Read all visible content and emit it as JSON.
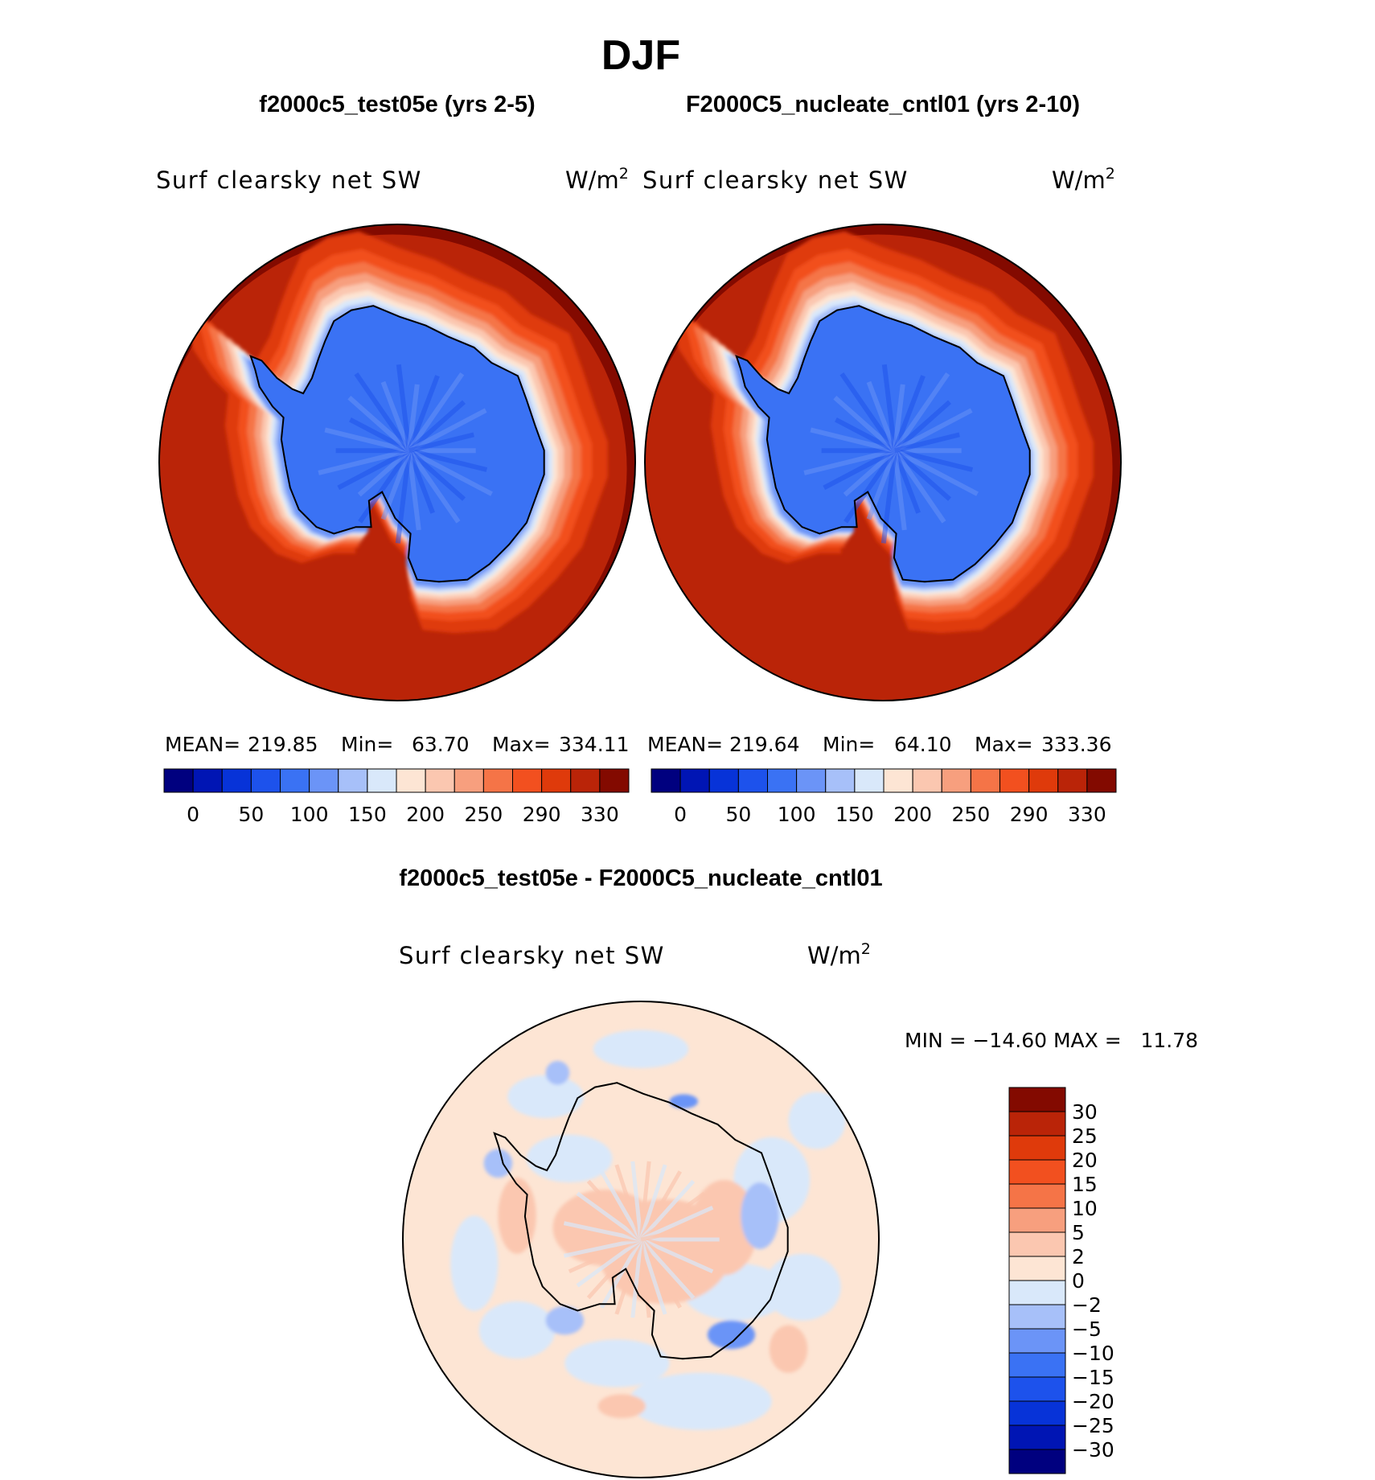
{
  "chart_data": {
    "type": "heatmap",
    "title": "DJF",
    "panels": [
      {
        "case_title": "f2000c5_test05e (yrs 2-5)",
        "variable": "Surf clearsky net SW",
        "units_base": "W/m",
        "units_exp": "2",
        "stats": {
          "mean_label": "MEAN=",
          "mean": "219.85",
          "min_label": "Min=",
          "min": "63.70",
          "max_label": "Max=",
          "max": "334.11"
        },
        "colorbar_ticks": [
          "0",
          "50",
          "100",
          "150",
          "200",
          "250",
          "290",
          "330"
        ],
        "colors": [
          "#00007f",
          "#0015b4",
          "#0733d8",
          "#1d52ec",
          "#3a72f4",
          "#6b94f7",
          "#a7c0f9",
          "#d9e8fa",
          "#fde5d4",
          "#fbc7b0",
          "#f79f7e",
          "#f57447",
          "#f2501f",
          "#df3a0b",
          "#ba2408",
          "#830a00"
        ]
      },
      {
        "case_title": "F2000C5_nucleate_cntl01 (yrs 2-10)",
        "variable": "Surf clearsky net SW",
        "units_base": "W/m",
        "units_exp": "2",
        "stats": {
          "mean_label": "MEAN=",
          "mean": "219.64",
          "min_label": "Min=",
          "min": "64.10",
          "max_label": "Max=",
          "max": "333.36"
        },
        "colorbar_ticks": [
          "0",
          "50",
          "100",
          "150",
          "200",
          "250",
          "290",
          "330"
        ],
        "colors": [
          "#00007f",
          "#0015b4",
          "#0733d8",
          "#1d52ec",
          "#3a72f4",
          "#6b94f7",
          "#a7c0f9",
          "#d9e8fa",
          "#fde5d4",
          "#fbc7b0",
          "#f79f7e",
          "#f57447",
          "#f2501f",
          "#df3a0b",
          "#ba2408",
          "#830a00"
        ]
      }
    ],
    "difference": {
      "case_title": "f2000c5_test05e - F2000C5_nucleate_cntl01",
      "variable": "Surf clearsky net SW",
      "units_base": "W/m",
      "units_exp": "2",
      "min_max_label": "MIN = −14.60 MAX =   11.78",
      "colorbar_ticks": [
        "30",
        "25",
        "20",
        "15",
        "10",
        "5",
        "2",
        "0",
        "−2",
        "−5",
        "−10",
        "−15",
        "−20",
        "−25",
        "−30"
      ],
      "colors": [
        "#830a00",
        "#ba2408",
        "#df3a0b",
        "#f2501f",
        "#f57447",
        "#f79f7e",
        "#fbc7b0",
        "#fde5d4",
        "#d9e8fa",
        "#a7c0f9",
        "#6b94f7",
        "#3a72f4",
        "#1d52ec",
        "#0733d8",
        "#0015b4",
        "#00007f"
      ]
    }
  }
}
